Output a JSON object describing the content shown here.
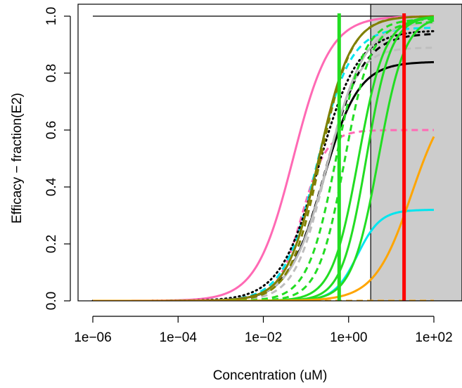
{
  "chart_data": {
    "type": "line",
    "title": "",
    "xlabel": "Concentration (uM)",
    "ylabel": "Efficacy − fraction(E2)",
    "x_scale": "log10",
    "xlim": [
      1e-06,
      100
    ],
    "ylim": [
      0,
      1
    ],
    "x_tick_labels": [
      "1e−06",
      "1e−04",
      "1e−02",
      "1e+00",
      "1e+02"
    ],
    "y_tick_labels": [
      "0.0",
      "0.2",
      "0.4",
      "0.6",
      "0.8",
      "1.0"
    ],
    "reference_line_y": 1.0,
    "shaded_region": {
      "x_from": 3.3,
      "color": "#cccccc"
    },
    "vertical_lines": [
      {
        "x": 0.6,
        "color": "#22dd22"
      },
      {
        "x": 20,
        "color": "#ff0000"
      }
    ],
    "series": [
      {
        "color": "#ff69b4",
        "style": "solid",
        "top": 1.0,
        "ec50": 0.05,
        "hill": 1.0
      },
      {
        "color": "#ff69b4",
        "style": "dashed",
        "top": 0.6,
        "ec50": 0.08,
        "hill": 1.5
      },
      {
        "color": "#00e5ee",
        "style": "dashed",
        "top": 0.96,
        "ec50": 0.18,
        "hill": 1.1
      },
      {
        "color": "#00e5ee",
        "style": "solid",
        "top": 0.32,
        "ec50": 1.6,
        "hill": 1.6
      },
      {
        "color": "#000000",
        "style": "dotted",
        "top": 0.95,
        "ec50": 0.2,
        "hill": 0.95
      },
      {
        "color": "#000000",
        "style": "dashed",
        "top": 0.94,
        "ec50": 0.3,
        "hill": 1.0
      },
      {
        "color": "#000000",
        "style": "solid",
        "top": 0.84,
        "ec50": 0.25,
        "hill": 1.05
      },
      {
        "color": "#bebebe",
        "style": "dashed",
        "top": 0.89,
        "ec50": 0.28,
        "hill": 1.2
      },
      {
        "color": "#bebebe",
        "style": "solid",
        "top": 0.98,
        "ec50": 0.33,
        "hill": 1.0
      },
      {
        "color": "#808000",
        "style": "solid",
        "top": 1.0,
        "ec50": 0.2,
        "hill": 1.15
      },
      {
        "color": "#808000",
        "style": "dashed",
        "top": 1.0,
        "ec50": 0.22,
        "hill": 1.2
      },
      {
        "color": "#22dd22",
        "style": "dashed",
        "top": 0.99,
        "ec50": 0.5,
        "hill": 1.3
      },
      {
        "color": "#22dd22",
        "style": "dashed",
        "top": 0.98,
        "ec50": 0.8,
        "hill": 1.4
      },
      {
        "color": "#22dd22",
        "style": "solid",
        "top": 1.0,
        "ec50": 1.7,
        "hill": 1.4
      },
      {
        "color": "#22dd22",
        "style": "solid",
        "top": 1.0,
        "ec50": 2.6,
        "hill": 1.5
      },
      {
        "color": "#22dd22",
        "style": "solid",
        "top": 1.0,
        "ec50": 5.0,
        "hill": 1.4
      },
      {
        "color": "#ffa500",
        "style": "solid",
        "top": 0.75,
        "ec50": 30,
        "hill": 1.0
      },
      {
        "color": "#ffa500",
        "style": "dashed",
        "top": 0.0,
        "ec50": 1,
        "hill": 1.0
      }
    ]
  }
}
